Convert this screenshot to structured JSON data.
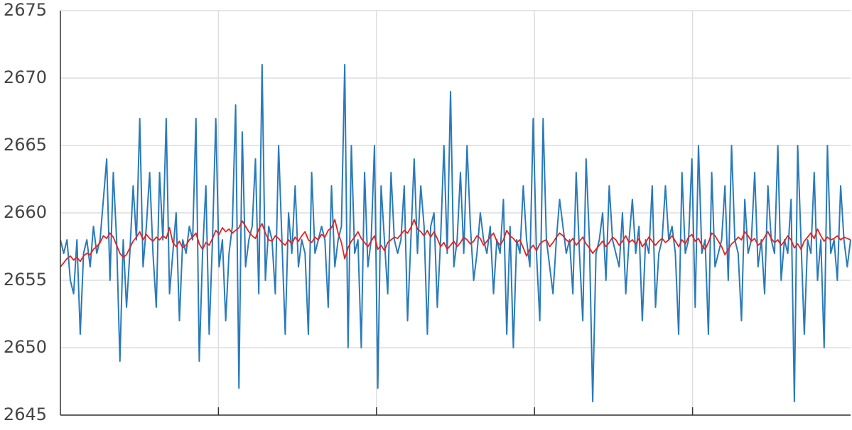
{
  "chart_data": {
    "type": "line",
    "ylim": [
      2645,
      2675
    ],
    "yticks": [
      2645,
      2650,
      2655,
      2660,
      2665,
      2670,
      2675
    ],
    "grid": true,
    "series": [
      {
        "color": "#2a7ab9",
        "values": [
          2658,
          2657,
          2658,
          2655,
          2654,
          2658,
          2651,
          2657,
          2658,
          2656,
          2659,
          2657,
          2658,
          2661,
          2664,
          2655,
          2663,
          2658,
          2649,
          2658,
          2653,
          2657,
          2662,
          2658,
          2667,
          2656,
          2659,
          2663,
          2657,
          2653,
          2663,
          2658,
          2667,
          2654,
          2657,
          2660,
          2652,
          2658,
          2657,
          2659,
          2658,
          2667,
          2649,
          2657,
          2662,
          2651,
          2658,
          2667,
          2656,
          2658,
          2652,
          2657,
          2659,
          2668,
          2647,
          2666,
          2656,
          2658,
          2659,
          2664,
          2654,
          2671,
          2655,
          2659,
          2658,
          2654,
          2665,
          2658,
          2651,
          2660,
          2657,
          2662,
          2656,
          2658,
          2657,
          2651,
          2663,
          2657,
          2658,
          2659,
          2658,
          2653,
          2662,
          2656,
          2658,
          2659,
          2671,
          2650,
          2665,
          2657,
          2658,
          2650,
          2663,
          2656,
          2658,
          2665,
          2647,
          2662,
          2658,
          2654,
          2663,
          2658,
          2657,
          2658,
          2662,
          2652,
          2658,
          2664,
          2657,
          2662,
          2659,
          2651,
          2659,
          2660,
          2653,
          2658,
          2665,
          2657,
          2669,
          2656,
          2658,
          2663,
          2657,
          2665,
          2659,
          2655,
          2657,
          2660,
          2658,
          2657,
          2659,
          2654,
          2658,
          2657,
          2661,
          2651,
          2659,
          2650,
          2658,
          2657,
          2662,
          2658,
          2656,
          2667,
          2657,
          2652,
          2667,
          2658,
          2656,
          2654,
          2658,
          2661,
          2659,
          2657,
          2658,
          2654,
          2663,
          2657,
          2652,
          2664,
          2658,
          2646,
          2657,
          2658,
          2660,
          2655,
          2662,
          2658,
          2657,
          2656,
          2660,
          2654,
          2658,
          2661,
          2657,
          2659,
          2652,
          2658,
          2657,
          2662,
          2653,
          2657,
          2658,
          2662,
          2658,
          2659,
          2657,
          2651,
          2663,
          2657,
          2658,
          2664,
          2653,
          2665,
          2657,
          2658,
          2651,
          2663,
          2656,
          2657,
          2658,
          2662,
          2655,
          2665,
          2658,
          2657,
          2652,
          2661,
          2657,
          2658,
          2663,
          2656,
          2658,
          2654,
          2662,
          2658,
          2657,
          2665,
          2655,
          2658,
          2657,
          2661,
          2646,
          2665,
          2658,
          2651,
          2658,
          2657,
          2663,
          2655,
          2658,
          2650,
          2665,
          2657,
          2658,
          2655,
          2662,
          2658,
          2656,
          2658
        ]
      },
      {
        "color": "#e8211c",
        "values": [
          2656.0,
          2656.3,
          2656.6,
          2656.8,
          2656.5,
          2656.7,
          2656.4,
          2656.8,
          2657.0,
          2656.9,
          2657.3,
          2657.5,
          2657.8,
          2658.3,
          2658.1,
          2658.5,
          2658.2,
          2657.6,
          2657.0,
          2656.7,
          2656.9,
          2657.4,
          2657.9,
          2658.2,
          2658.6,
          2658.0,
          2658.4,
          2658.1,
          2657.9,
          2658.2,
          2658.0,
          2658.3,
          2658.1,
          2658.9,
          2657.8,
          2657.5,
          2657.9,
          2657.4,
          2657.6,
          2658.0,
          2658.2,
          2658.5,
          2657.7,
          2657.3,
          2657.8,
          2657.6,
          2658.1,
          2658.7,
          2658.4,
          2658.9,
          2658.6,
          2658.8,
          2658.5,
          2658.7,
          2658.9,
          2659.4,
          2659.0,
          2658.6,
          2658.3,
          2658.1,
          2658.8,
          2659.2,
          2658.5,
          2658.0,
          2657.9,
          2658.3,
          2658.1,
          2657.8,
          2657.6,
          2658.0,
          2657.7,
          2658.2,
          2657.9,
          2658.3,
          2658.6,
          2658.0,
          2657.8,
          2658.2,
          2658.0,
          2658.4,
          2658.2,
          2658.7,
          2658.9,
          2659.5,
          2658.5,
          2657.8,
          2656.6,
          2657.4,
          2657.9,
          2658.2,
          2658.6,
          2658.1,
          2657.8,
          2657.5,
          2657.9,
          2658.3,
          2657.3,
          2657.6,
          2657.2,
          2657.8,
          2658.0,
          2658.2,
          2658.1,
          2658.4,
          2658.7,
          2658.5,
          2658.9,
          2659.5,
          2658.8,
          2658.6,
          2658.3,
          2658.7,
          2658.2,
          2658.6,
          2658.1,
          2657.5,
          2657.8,
          2657.3,
          2657.6,
          2657.9,
          2657.5,
          2657.8,
          2658.2,
          2658.0,
          2657.7,
          2657.9,
          2658.3,
          2658.1,
          2657.6,
          2657.9,
          2658.2,
          2658.5,
          2657.9,
          2657.6,
          2658.0,
          2658.7,
          2658.3,
          2658.1,
          2657.8,
          2658.0,
          2657.4,
          2656.8,
          2657.3,
          2657.6,
          2657.2,
          2657.7,
          2657.9,
          2658.0,
          2657.5,
          2657.8,
          2658.2,
          2658.5,
          2658.3,
          2658.0,
          2657.8,
          2658.1,
          2657.6,
          2657.9,
          2658.2,
          2657.7,
          2657.4,
          2657.0,
          2657.3,
          2657.6,
          2657.9,
          2657.5,
          2657.8,
          2658.2,
          2658.0,
          2657.6,
          2657.9,
          2658.3,
          2657.8,
          2658.0,
          2657.7,
          2658.1,
          2657.5,
          2657.8,
          2658.2,
          2657.9,
          2657.6,
          2657.9,
          2658.1,
          2657.8,
          2658.0,
          2658.3,
          2657.9,
          2657.5,
          2658.0,
          2657.7,
          2658.2,
          2658.4,
          2657.9,
          2658.1,
          2657.6,
          2657.3,
          2657.8,
          2658.5,
          2658.3,
          2657.9,
          2657.5,
          2656.9,
          2657.3,
          2657.7,
          2657.9,
          2658.2,
          2658.0,
          2658.6,
          2658.3,
          2657.9,
          2658.1,
          2657.6,
          2657.8,
          2658.2,
          2658.6,
          2658.1,
          2657.8,
          2658.0,
          2657.6,
          2657.9,
          2658.3,
          2658.0,
          2657.4,
          2657.7,
          2657.3,
          2657.9,
          2658.2,
          2658.5,
          2658.1,
          2658.8,
          2658.3,
          2657.9,
          2658.2,
          2658.0,
          2658.1,
          2658.3,
          2658.0,
          2658.2,
          2658.1,
          2658.0
        ]
      }
    ]
  }
}
